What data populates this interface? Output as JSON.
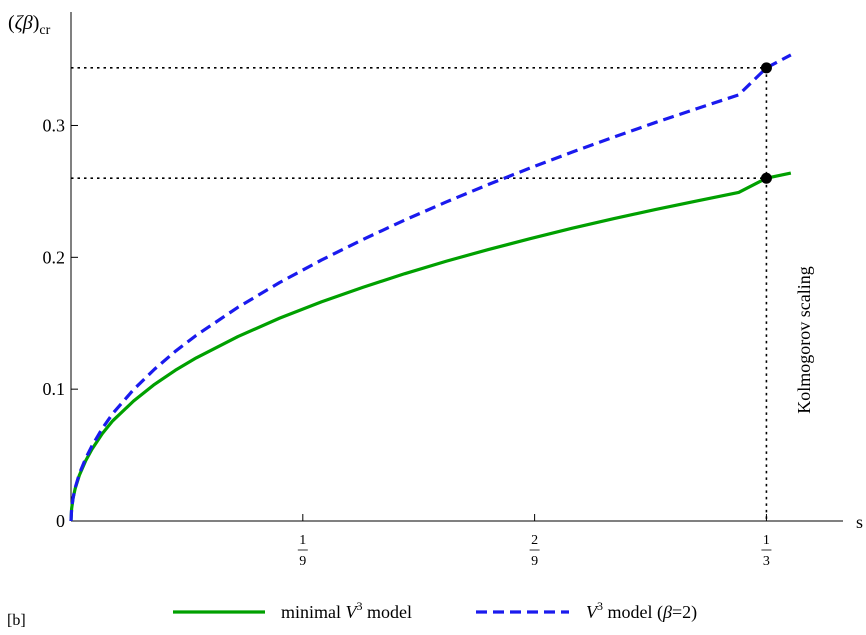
{
  "chart_data": {
    "type": "line",
    "panel_label": "[b]",
    "ylabel": {
      "prefix": "(",
      "symbols": "ζβ",
      "suffix": ")",
      "subscript": "cr"
    },
    "xlabel": "s",
    "xlim": [
      0,
      0.37
    ],
    "ylim": [
      0,
      0.38
    ],
    "grid": false,
    "legend_position": "bottom",
    "y_ticks": [
      {
        "value": 0,
        "label": "0"
      },
      {
        "value": 0.1,
        "label": "0.1"
      },
      {
        "value": 0.2,
        "label": "0.2"
      },
      {
        "value": 0.3,
        "label": "0.3"
      }
    ],
    "x_ticks": [
      {
        "value": 0.1111,
        "num": "1",
        "den": "9"
      },
      {
        "value": 0.2222,
        "num": "2",
        "den": "9"
      },
      {
        "value": 0.3333,
        "num": "1",
        "den": "3"
      }
    ],
    "series": [
      {
        "name": "minimal V³ model",
        "legend": {
          "prefix": "minimal ",
          "var": "V",
          "sup": "3",
          "suffix": " model"
        },
        "color": "#00a000",
        "style": "solid",
        "x": [
          0,
          0.0003,
          0.001,
          0.002,
          0.004,
          0.007,
          0.01,
          0.015,
          0.02,
          0.03,
          0.04,
          0.05,
          0.06,
          0.08,
          0.1,
          0.12,
          0.14,
          0.16,
          0.18,
          0.2,
          0.22,
          0.24,
          0.26,
          0.28,
          0.3,
          0.32,
          0.3333,
          0.345
        ],
        "y": [
          0,
          0.0094,
          0.0173,
          0.0246,
          0.0347,
          0.0456,
          0.0543,
          0.0663,
          0.076,
          0.091,
          0.1036,
          0.1143,
          0.1237,
          0.1399,
          0.1539,
          0.1662,
          0.1773,
          0.1876,
          0.1971,
          0.2059,
          0.2141,
          0.222,
          0.2293,
          0.2362,
          0.2428,
          0.2492,
          0.26,
          0.2639
        ]
      },
      {
        "name": "V³ model (β=2)",
        "legend": {
          "prefix": "",
          "var": "V",
          "sup": "3",
          "suffix": " model (",
          "beta": "β",
          "tail": "=2)"
        },
        "color": "#1a1aee",
        "style": "dashed",
        "x": [
          0,
          0.0003,
          0.001,
          0.002,
          0.004,
          0.007,
          0.01,
          0.015,
          0.02,
          0.03,
          0.04,
          0.05,
          0.06,
          0.08,
          0.1,
          0.12,
          0.14,
          0.16,
          0.18,
          0.2,
          0.22,
          0.24,
          0.26,
          0.28,
          0.3,
          0.32,
          0.3333,
          0.345
        ],
        "y": [
          0,
          0.0095,
          0.0176,
          0.0251,
          0.0358,
          0.0474,
          0.0568,
          0.0702,
          0.0815,
          0.0997,
          0.1151,
          0.1287,
          0.1408,
          0.1621,
          0.1809,
          0.1979,
          0.2136,
          0.2283,
          0.2421,
          0.2552,
          0.2677,
          0.2797,
          0.2911,
          0.3022,
          0.3128,
          0.3232,
          0.3437,
          0.3535
        ]
      }
    ],
    "markers": [
      {
        "x": 0.3333,
        "y": 0.3437
      },
      {
        "x": 0.3333,
        "y": 0.26
      }
    ],
    "reference_lines": {
      "x": 0.3333,
      "y": [
        0.3437,
        0.26
      ]
    },
    "annotations": [
      {
        "text": "Kolmogorov scaling",
        "orientation": "vertical",
        "at_x": 0.3333
      }
    ]
  }
}
